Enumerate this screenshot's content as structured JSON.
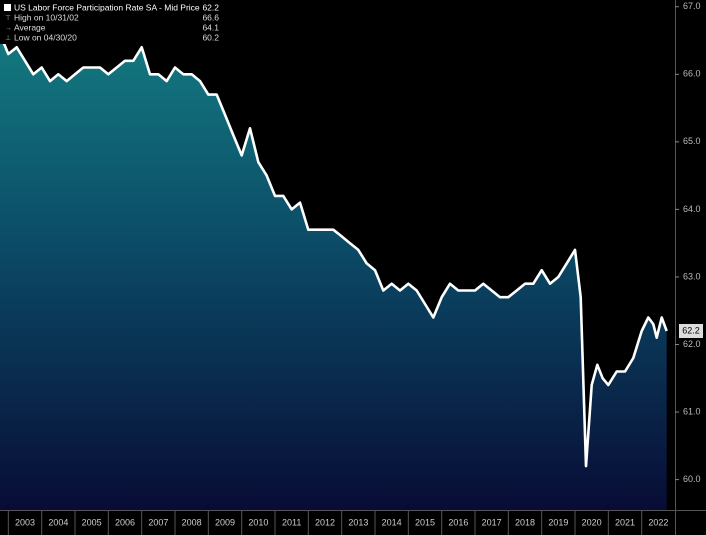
{
  "chart_data": {
    "type": "area-line",
    "title": "US Labor Force Participation Rate SA - Mid Price",
    "series": [
      {
        "name": "US Labor Force Participation Rate SA - Mid Price",
        "color": "#ffffff",
        "x": [
          2002.75,
          2003.0,
          2003.25,
          2003.5,
          2003.75,
          2004.0,
          2004.25,
          2004.5,
          2004.75,
          2005.0,
          2005.25,
          2005.5,
          2005.75,
          2006.0,
          2006.25,
          2006.5,
          2006.75,
          2007.0,
          2007.25,
          2007.5,
          2007.75,
          2008.0,
          2008.25,
          2008.5,
          2008.75,
          2009.0,
          2009.25,
          2009.5,
          2009.75,
          2010.0,
          2010.25,
          2010.5,
          2010.75,
          2011.0,
          2011.25,
          2011.5,
          2011.75,
          2012.0,
          2012.25,
          2012.5,
          2012.75,
          2013.0,
          2013.25,
          2013.5,
          2013.75,
          2014.0,
          2014.25,
          2014.5,
          2014.75,
          2015.0,
          2015.25,
          2015.5,
          2015.75,
          2016.0,
          2016.25,
          2016.5,
          2016.75,
          2017.0,
          2017.25,
          2017.5,
          2017.75,
          2018.0,
          2018.25,
          2018.5,
          2018.75,
          2019.0,
          2019.25,
          2019.5,
          2019.75,
          2020.0,
          2020.17,
          2020.33,
          2020.5,
          2020.67,
          2020.83,
          2021.0,
          2021.25,
          2021.5,
          2021.75,
          2022.0,
          2022.2,
          2022.35,
          2022.45,
          2022.6,
          2022.75
        ],
        "values": [
          66.6,
          66.3,
          66.4,
          66.2,
          66.0,
          66.1,
          65.9,
          66.0,
          65.9,
          66.0,
          66.1,
          66.1,
          66.1,
          66.0,
          66.1,
          66.2,
          66.2,
          66.4,
          66.0,
          66.0,
          65.9,
          66.1,
          66.0,
          66.0,
          65.9,
          65.7,
          65.7,
          65.4,
          65.1,
          64.8,
          65.2,
          64.7,
          64.5,
          64.2,
          64.2,
          64.0,
          64.1,
          63.7,
          63.7,
          63.7,
          63.7,
          63.6,
          63.5,
          63.4,
          63.2,
          63.1,
          62.8,
          62.9,
          62.8,
          62.9,
          62.8,
          62.6,
          62.4,
          62.7,
          62.9,
          62.8,
          62.8,
          62.8,
          62.9,
          62.8,
          62.7,
          62.7,
          62.8,
          62.9,
          62.9,
          63.1,
          62.9,
          63.0,
          63.2,
          63.4,
          62.7,
          60.2,
          61.4,
          61.7,
          61.5,
          61.4,
          61.6,
          61.6,
          61.8,
          62.2,
          62.4,
          62.3,
          62.1,
          62.4,
          62.2
        ]
      }
    ],
    "last_value": 62.2,
    "legend": [
      {
        "label": "High on 10/31/02",
        "value": 66.6
      },
      {
        "label": "Average",
        "value": 64.1
      },
      {
        "label": "Low on 04/30/20",
        "value": 60.2
      }
    ],
    "xlim": [
      2002.75,
      2023.0
    ],
    "xticks": [
      2003,
      2004,
      2005,
      2006,
      2007,
      2008,
      2009,
      2010,
      2011,
      2012,
      2013,
      2014,
      2015,
      2016,
      2017,
      2018,
      2019,
      2020,
      2021,
      2022
    ],
    "ylim": [
      59.55,
      67.1
    ],
    "yticks": [
      {
        "value": 60,
        "label": "60.0"
      },
      {
        "value": 61,
        "label": "61.0"
      },
      {
        "value": 62,
        "label": "62.0"
      },
      {
        "value": 63,
        "label": "63.0"
      },
      {
        "value": 64,
        "label": "64.0"
      },
      {
        "value": 65,
        "label": "65.0"
      },
      {
        "value": 66,
        "label": "66.0"
      },
      {
        "value": 67,
        "label": "67.0"
      }
    ]
  }
}
